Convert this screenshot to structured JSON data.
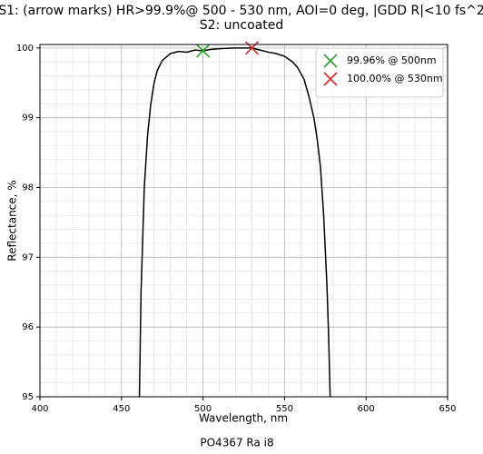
{
  "chart_data": {
    "type": "line",
    "title": "S1: (arrow marks) HR>99.9%@ 500 - 530 nm, AOI=0 deg, |GDD R|<10 fs^2",
    "subtitle": "S2: uncoated",
    "xlabel": "Wavelength, nm",
    "ylabel": "Reflectance, %",
    "x": [
      461,
      462,
      464,
      466,
      468,
      470,
      472,
      475,
      480,
      485,
      490,
      495,
      500,
      505,
      510,
      520,
      525,
      530,
      535,
      540,
      545,
      550,
      555,
      558,
      562,
      565,
      568,
      570,
      572,
      574,
      576,
      577,
      578
    ],
    "series": [
      {
        "color": "#000000",
        "values": [
          95.0,
          96.5,
          98.0,
          98.75,
          99.2,
          99.5,
          99.68,
          99.82,
          99.92,
          99.95,
          99.94,
          99.97,
          99.96,
          99.98,
          99.99,
          100.0,
          100.0,
          100.0,
          99.97,
          99.94,
          99.92,
          99.88,
          99.8,
          99.72,
          99.55,
          99.3,
          99.0,
          98.7,
          98.3,
          97.6,
          96.6,
          95.9,
          95.0
        ]
      }
    ],
    "markers": [
      {
        "name": "99.96% @ 500nm",
        "color": "#2ca02c",
        "x": 500,
        "y": 99.96
      },
      {
        "name": "100.00% @ 530nm",
        "color": "#d62728",
        "x": 530,
        "y": 100.0
      }
    ],
    "xlim": [
      400,
      650
    ],
    "ylim": [
      95,
      100.05
    ],
    "xticks": [
      400,
      450,
      500,
      550,
      600,
      650
    ],
    "yticks": [
      95,
      96,
      97,
      98,
      99,
      100
    ],
    "grid": true,
    "minor_grid": true,
    "legend": "upper right"
  },
  "footer": "PO4367 Ra i8"
}
